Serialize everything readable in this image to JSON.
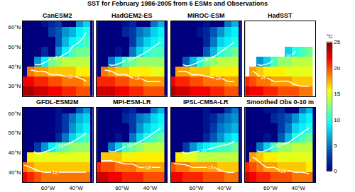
{
  "chart_data": {
    "type": "heatmap",
    "title": "SST for February 1986-2005 from 6 ESMs and Observations",
    "x": [
      -77.5,
      -72.5,
      -67.5,
      -62.5,
      -57.5,
      -52.5,
      -47.5,
      -42.5,
      -37.5,
      -32.5
    ],
    "y": [
      27.5,
      32.5,
      37.5,
      42.5,
      47.5,
      52.5,
      57.5,
      62.5
    ],
    "xlim": [
      -78,
      -28
    ],
    "ylim": [
      25,
      63
    ],
    "xticks": [
      {
        "value": -60,
        "label": "60°W"
      },
      {
        "value": -40,
        "label": "40°W"
      }
    ],
    "yticks": [
      {
        "value": 30,
        "label": "30°N"
      },
      {
        "value": 40,
        "label": "40°N"
      },
      {
        "value": 50,
        "label": "50°N"
      },
      {
        "value": 60,
        "label": "60°N"
      }
    ],
    "contours": [
      10,
      18
    ],
    "colorbar": {
      "range": [
        0,
        25
      ],
      "ticks": [
        0,
        5,
        10,
        15,
        20,
        25
      ],
      "title": "°C"
    },
    "panels": [
      {
        "title": "CanESM2",
        "z": [
          [
            24,
            24,
            23,
            23,
            22,
            22,
            21,
            21,
            20,
            20
          ],
          [
            22,
            22,
            21,
            21,
            20,
            20,
            19,
            19,
            19,
            18
          ],
          [
            null,
            19,
            18,
            18,
            17,
            17,
            17,
            17,
            16,
            16
          ],
          [
            null,
            null,
            6,
            9,
            12,
            13,
            14,
            14,
            14,
            14
          ],
          [
            null,
            null,
            null,
            2,
            null,
            6,
            9,
            11,
            12,
            12
          ],
          [
            null,
            null,
            null,
            null,
            null,
            4,
            7,
            9,
            10,
            11
          ],
          [
            null,
            null,
            null,
            null,
            3,
            4,
            6,
            7,
            9,
            10
          ],
          [
            null,
            null,
            null,
            1,
            2,
            3,
            null,
            null,
            6,
            8
          ]
        ]
      },
      {
        "title": "HadGEM2-ES",
        "z": [
          [
            23,
            23,
            23,
            22,
            22,
            21,
            21,
            20,
            20,
            20
          ],
          [
            21,
            21,
            21,
            20,
            20,
            19,
            19,
            18,
            18,
            18
          ],
          [
            null,
            19,
            18,
            17,
            17,
            16,
            16,
            16,
            15,
            15
          ],
          [
            null,
            null,
            5,
            8,
            11,
            12,
            13,
            13,
            13,
            13
          ],
          [
            null,
            null,
            null,
            1,
            null,
            5,
            8,
            10,
            11,
            11
          ],
          [
            null,
            null,
            null,
            null,
            null,
            3,
            6,
            8,
            9,
            10
          ],
          [
            null,
            null,
            null,
            null,
            2,
            3,
            5,
            6,
            8,
            9
          ],
          [
            null,
            null,
            null,
            0,
            1,
            2,
            null,
            null,
            5,
            7
          ]
        ]
      },
      {
        "title": "MIROC-ESM",
        "z": [
          [
            24,
            23,
            23,
            22,
            22,
            22,
            21,
            21,
            20,
            20
          ],
          [
            22,
            21,
            21,
            20,
            20,
            19,
            19,
            19,
            18,
            18
          ],
          [
            null,
            18,
            18,
            17,
            17,
            17,
            16,
            16,
            16,
            16
          ],
          [
            null,
            null,
            4,
            7,
            10,
            12,
            13,
            14,
            14,
            14
          ],
          [
            null,
            null,
            null,
            0,
            null,
            4,
            7,
            10,
            11,
            12
          ],
          [
            null,
            null,
            null,
            null,
            null,
            2,
            5,
            8,
            9,
            10
          ],
          [
            null,
            null,
            null,
            null,
            1,
            2,
            4,
            6,
            8,
            9
          ],
          [
            null,
            null,
            null,
            0,
            0,
            1,
            null,
            null,
            5,
            7
          ]
        ]
      },
      {
        "title": "HadSST",
        "z": [
          [
            23,
            22,
            22,
            21,
            21,
            20,
            20,
            20,
            19,
            19
          ],
          [
            21,
            20,
            19,
            19,
            18,
            18,
            18,
            17,
            17,
            17
          ],
          [
            null,
            18,
            17,
            16,
            16,
            16,
            15,
            15,
            15,
            15
          ],
          [
            null,
            null,
            6,
            8,
            11,
            13,
            13,
            14,
            14,
            14
          ],
          [
            null,
            null,
            null,
            null,
            null,
            null,
            8,
            10,
            11,
            12
          ],
          [
            null,
            null,
            null,
            null,
            null,
            null,
            null,
            null,
            null,
            null
          ],
          [
            null,
            null,
            null,
            null,
            null,
            null,
            null,
            null,
            null,
            null
          ],
          [
            null,
            null,
            null,
            null,
            null,
            null,
            null,
            null,
            null,
            null
          ]
        ]
      },
      {
        "title": "GFDL-ESM2M",
        "z": [
          [
            22,
            21,
            20,
            19,
            19,
            19,
            19,
            19,
            19,
            19
          ],
          [
            19,
            18,
            17,
            17,
            17,
            17,
            17,
            17,
            17,
            17
          ],
          [
            null,
            16,
            15,
            15,
            15,
            15,
            15,
            15,
            15,
            15
          ],
          [
            null,
            null,
            3,
            6,
            9,
            11,
            12,
            13,
            13,
            13
          ],
          [
            null,
            null,
            null,
            0,
            null,
            2,
            5,
            8,
            10,
            11
          ],
          [
            null,
            null,
            null,
            null,
            null,
            1,
            3,
            6,
            8,
            9
          ],
          [
            null,
            null,
            null,
            null,
            0,
            1,
            3,
            5,
            7,
            8
          ],
          [
            null,
            null,
            null,
            0,
            0,
            1,
            null,
            null,
            4,
            6
          ]
        ]
      },
      {
        "title": "MPI-ESM-LR",
        "z": [
          [
            23,
            23,
            22,
            22,
            21,
            21,
            21,
            20,
            20,
            20
          ],
          [
            21,
            20,
            20,
            19,
            19,
            19,
            18,
            18,
            18,
            18
          ],
          [
            null,
            17,
            17,
            17,
            16,
            16,
            16,
            16,
            16,
            16
          ],
          [
            null,
            null,
            5,
            8,
            11,
            12,
            13,
            14,
            14,
            14
          ],
          [
            null,
            null,
            null,
            1,
            null,
            5,
            8,
            10,
            11,
            12
          ],
          [
            null,
            null,
            null,
            null,
            null,
            3,
            6,
            8,
            9,
            10
          ],
          [
            null,
            null,
            null,
            null,
            2,
            3,
            5,
            6,
            8,
            9
          ],
          [
            null,
            null,
            null,
            0,
            1,
            2,
            null,
            null,
            5,
            7
          ]
        ]
      },
      {
        "title": "IPSL-CM5A-LR",
        "z": [
          [
            22,
            22,
            21,
            21,
            21,
            20,
            20,
            20,
            19,
            19
          ],
          [
            20,
            19,
            19,
            18,
            18,
            18,
            18,
            17,
            17,
            17
          ],
          [
            null,
            16,
            15,
            15,
            14,
            14,
            14,
            14,
            14,
            14
          ],
          [
            null,
            null,
            3,
            6,
            8,
            9,
            10,
            11,
            11,
            12
          ],
          [
            null,
            null,
            null,
            0,
            null,
            2,
            4,
            6,
            8,
            9
          ],
          [
            null,
            null,
            null,
            null,
            null,
            1,
            3,
            5,
            6,
            7
          ],
          [
            null,
            null,
            null,
            null,
            0,
            1,
            2,
            4,
            5,
            6
          ],
          [
            null,
            null,
            null,
            0,
            0,
            1,
            null,
            null,
            3,
            5
          ]
        ]
      },
      {
        "title": "Smoothed Obs 0-10 m",
        "z": [
          [
            23,
            22,
            21,
            21,
            20,
            20,
            20,
            19,
            19,
            19
          ],
          [
            21,
            20,
            19,
            18,
            18,
            17,
            17,
            17,
            17,
            16
          ],
          [
            null,
            18,
            17,
            16,
            16,
            15,
            15,
            15,
            15,
            15
          ],
          [
            null,
            null,
            5,
            8,
            11,
            13,
            13,
            14,
            14,
            14
          ],
          [
            null,
            null,
            null,
            1,
            null,
            4,
            7,
            10,
            11,
            12
          ],
          [
            null,
            null,
            null,
            null,
            null,
            3,
            5,
            8,
            9,
            10
          ],
          [
            null,
            null,
            null,
            null,
            2,
            3,
            4,
            6,
            8,
            9
          ],
          [
            null,
            null,
            null,
            1,
            1,
            2,
            null,
            null,
            5,
            7
          ]
        ]
      }
    ]
  }
}
